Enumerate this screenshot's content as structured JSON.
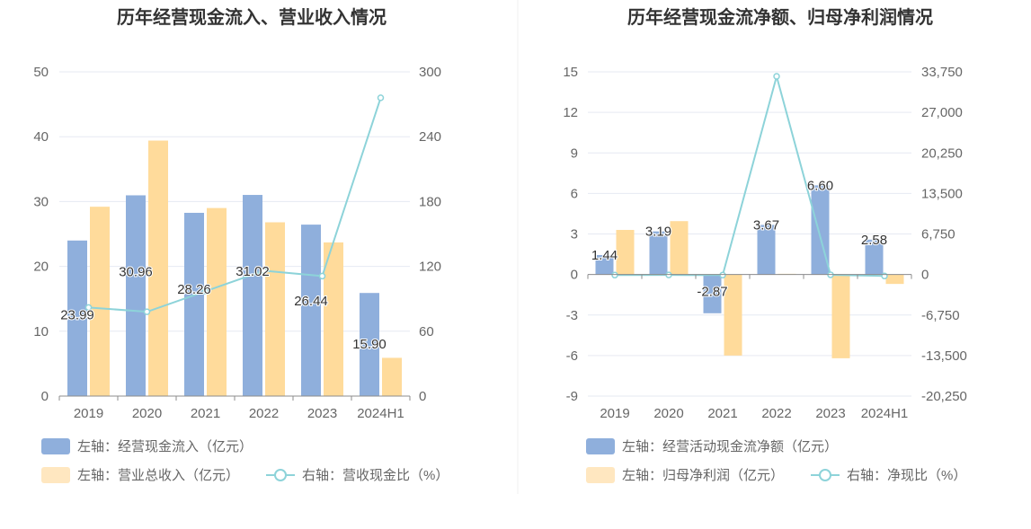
{
  "colors": {
    "bar_blue": "#8fafdc",
    "bar_yellow": "#ffdb9b",
    "line": "#8dd3d9",
    "grid": "#e6e9f2",
    "axis": "#8c8c8c",
    "legend_blue": "#8fafdc",
    "legend_yellow": "#ffe7c0"
  },
  "chart_data": [
    {
      "type": "bar",
      "title": "历年经营现金流入、营业收入情况",
      "categories": [
        "2019",
        "2020",
        "2021",
        "2022",
        "2023",
        "2024H1"
      ],
      "left_axis": {
        "min": 0,
        "max": 50,
        "ticks": [
          "0",
          "10",
          "20",
          "30",
          "40",
          "50"
        ],
        "tick_values": [
          0,
          10,
          20,
          30,
          40,
          50
        ]
      },
      "right_axis": {
        "min": 0,
        "max": 300,
        "ticks": [
          "0",
          "60",
          "120",
          "180",
          "240",
          "300"
        ],
        "tick_values": [
          0,
          60,
          120,
          180,
          240,
          300
        ]
      },
      "series": [
        {
          "name": "左轴：经营现金流入（亿元）",
          "kind": "bar",
          "axis": "left",
          "values": [
            23.99,
            30.96,
            28.26,
            31.02,
            26.44,
            15.9
          ],
          "labels": [
            "23.99",
            "30.96",
            "28.26",
            "31.02",
            "26.44",
            "15.90"
          ]
        },
        {
          "name": "左轴：营业总收入（亿元）",
          "kind": "bar",
          "axis": "left",
          "values": [
            29.2,
            39.4,
            29.0,
            26.8,
            23.7,
            5.9
          ]
        },
        {
          "name": "右轴：营收现金比（%）",
          "kind": "line",
          "axis": "right",
          "values": [
            82,
            78,
            97,
            116,
            111,
            276
          ]
        }
      ]
    },
    {
      "type": "bar",
      "title": "历年经营现金流净额、归母净利润情况",
      "categories": [
        "2019",
        "2020",
        "2021",
        "2022",
        "2023",
        "2024H1"
      ],
      "left_axis": {
        "min": -9,
        "max": 15,
        "ticks": [
          "-9",
          "-6",
          "-3",
          "0",
          "3",
          "6",
          "9",
          "12",
          "15"
        ],
        "tick_values": [
          -9,
          -6,
          -3,
          0,
          3,
          6,
          9,
          12,
          15
        ]
      },
      "right_axis": {
        "min": -20250,
        "max": 33750,
        "ticks": [
          "-20,250",
          "-13,500",
          "-6,750",
          "0",
          "6,750",
          "13,500",
          "20,250",
          "27,000",
          "33,750"
        ],
        "tick_values": [
          -20250,
          -13500,
          -6750,
          0,
          6750,
          13500,
          20250,
          27000,
          33750
        ]
      },
      "series": [
        {
          "name": "左轴：经营活动现金流净额（亿元）",
          "kind": "bar",
          "axis": "left",
          "values": [
            1.44,
            3.19,
            -2.87,
            3.67,
            6.6,
            2.58
          ],
          "labels": [
            "1.44",
            "3.19",
            "-2.87",
            "3.67",
            "6.60",
            "2.58"
          ]
        },
        {
          "name": "左轴：归母净利润（亿元）",
          "kind": "bar",
          "axis": "left",
          "values": [
            3.3,
            3.95,
            -6.0,
            0.05,
            -6.2,
            -0.7
          ]
        },
        {
          "name": "右轴：净现比（%）",
          "kind": "line",
          "axis": "right",
          "values": [
            -100,
            -80,
            -100,
            33000,
            -50,
            -250
          ]
        }
      ]
    }
  ]
}
